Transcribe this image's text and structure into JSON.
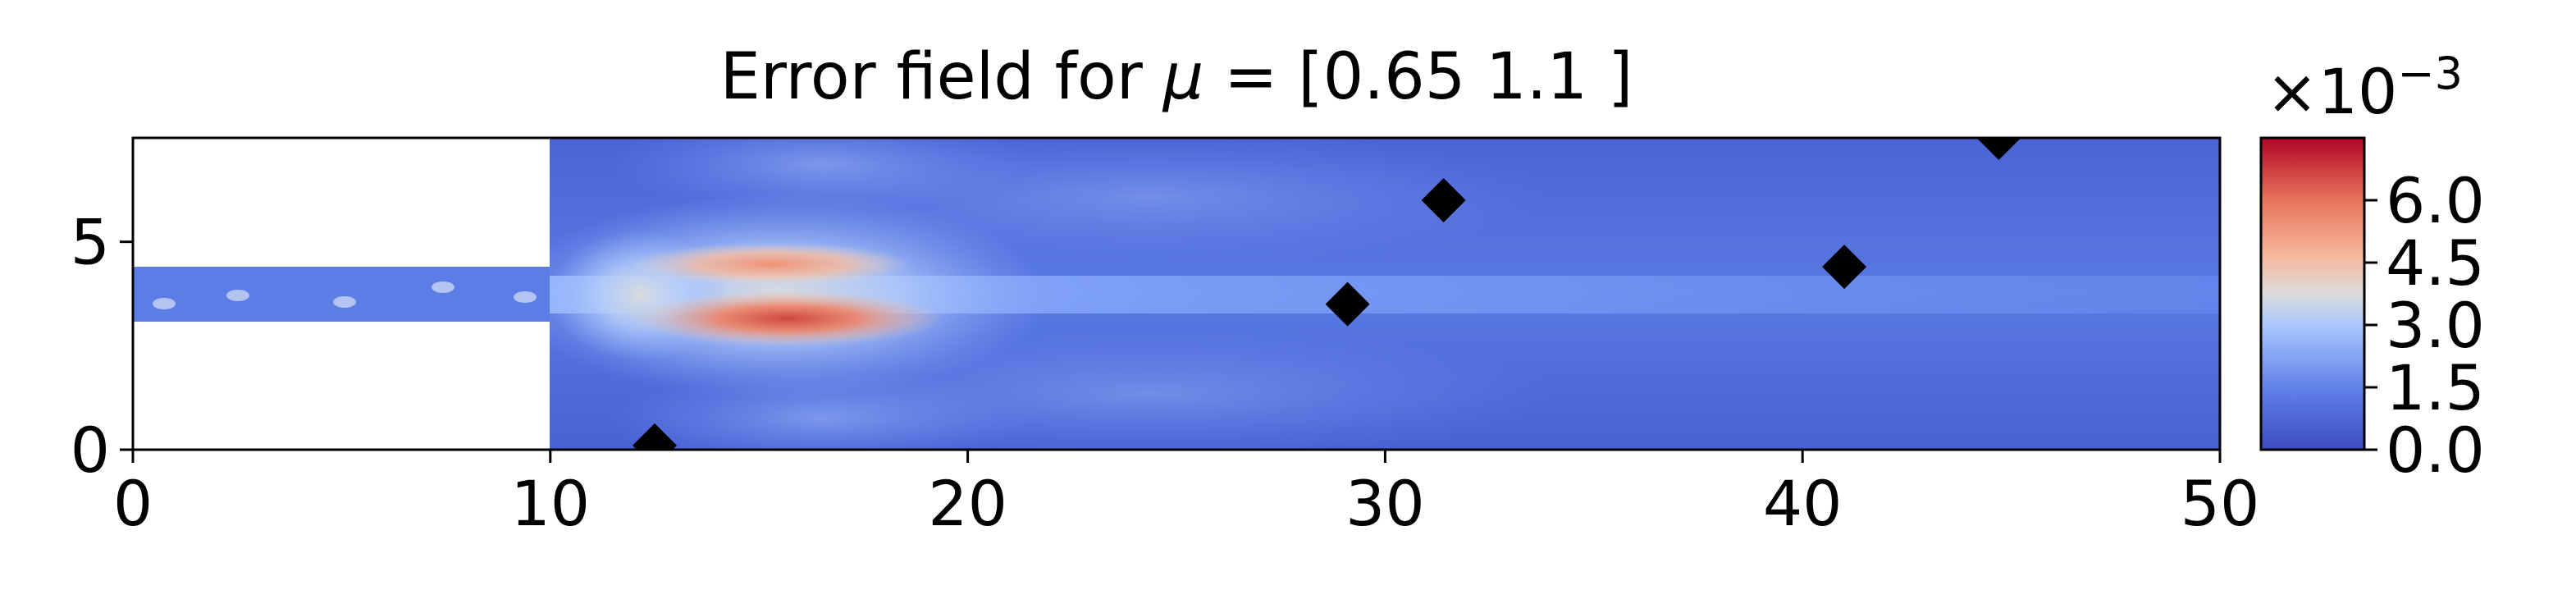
{
  "chart_data": {
    "type": "heatmap",
    "title": "Error field for μ = [0.65 1.1 ]",
    "title_prefix": "Error field for ",
    "title_mu": "μ",
    "title_suffix": " = [0.65 1.1 ]",
    "xlabel": "",
    "ylabel": "",
    "xlim": [
      0,
      50
    ],
    "ylim": [
      0,
      7.5
    ],
    "x_ticks": [
      0,
      10,
      20,
      30,
      40,
      50
    ],
    "x_tick_labels": [
      "0",
      "10",
      "20",
      "30",
      "40",
      "50"
    ],
    "y_ticks": [
      0,
      5
    ],
    "y_tick_labels": [
      "0",
      "5"
    ],
    "grid": false,
    "colormap": "coolwarm",
    "colorbar": {
      "multiplier_label": "×10",
      "multiplier_exponent": "−3",
      "range": [
        0.0,
        7.5
      ],
      "ticks": [
        0.0,
        1.5,
        3.0,
        4.5,
        6.0
      ],
      "tick_labels": [
        "0.0",
        "1.5",
        "3.0",
        "4.5",
        "6.0"
      ]
    },
    "domain": {
      "inlet_channel": {
        "x": [
          0,
          10
        ],
        "y": [
          3.1,
          4.4
        ]
      },
      "main_chamber": {
        "x": [
          10,
          50
        ],
        "y": [
          0,
          7.5
        ]
      }
    },
    "error_hotspots": [
      {
        "x": 14.5,
        "y": 4.4,
        "value": 5.5
      },
      {
        "x": 15.5,
        "y": 3.1,
        "value": 6.8
      }
    ],
    "markers": {
      "shape": "diamond",
      "color": "#000000",
      "points": [
        {
          "x": 12.5,
          "y": 0.1
        },
        {
          "x": 29.1,
          "y": 3.5
        },
        {
          "x": 31.4,
          "y": 6.0
        },
        {
          "x": 41.0,
          "y": 4.4
        },
        {
          "x": 44.7,
          "y": 7.5
        }
      ]
    }
  }
}
